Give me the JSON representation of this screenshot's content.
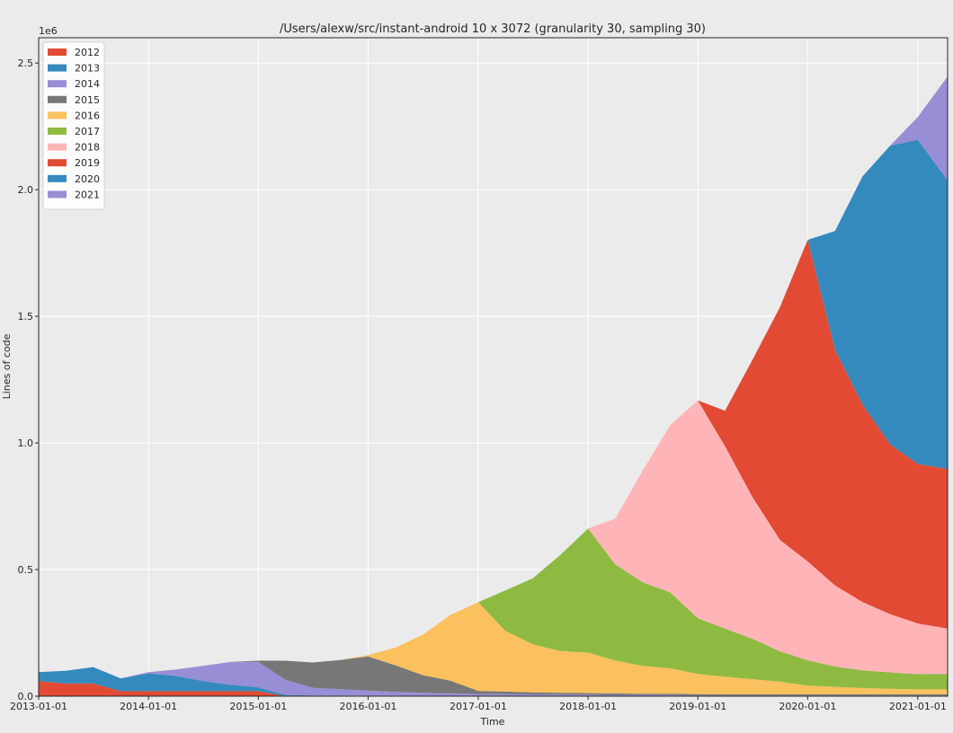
{
  "chart_data": {
    "type": "area",
    "stacked": true,
    "title": "/Users/alexw/src/instant-android 10 x 3072 (granularity 30, sampling 30)",
    "xlabel": "Time",
    "ylabel": "Lines of code",
    "y_scale_label": "1e6",
    "xlim": [
      "2013-01-01",
      "2021-04-10"
    ],
    "ylim": [
      0,
      2.6
    ],
    "grid": true,
    "legend_position": "upper-left",
    "x_ticks": [
      "2013-01-01",
      "2014-01-01",
      "2015-01-01",
      "2016-01-01",
      "2017-01-01",
      "2018-01-01",
      "2019-01-01",
      "2020-01-01",
      "2021-01-01"
    ],
    "y_ticks": [
      "0.0",
      "0.5",
      "1.0",
      "1.5",
      "2.0",
      "2.5"
    ],
    "x": [
      "2013-01-01",
      "2013-04-01",
      "2013-07-01",
      "2013-10-01",
      "2014-01-01",
      "2014-04-01",
      "2014-07-01",
      "2014-10-01",
      "2015-01-01",
      "2015-04-01",
      "2015-07-01",
      "2015-10-01",
      "2016-01-01",
      "2016-04-01",
      "2016-07-01",
      "2016-10-01",
      "2017-01-01",
      "2017-04-01",
      "2017-07-01",
      "2017-10-01",
      "2018-01-01",
      "2018-04-01",
      "2018-07-01",
      "2018-10-01",
      "2019-01-01",
      "2019-04-01",
      "2019-07-01",
      "2019-10-01",
      "2020-01-01",
      "2020-04-01",
      "2020-07-01",
      "2020-10-01",
      "2021-01-01",
      "2021-04-10"
    ],
    "series": [
      {
        "name": "2012",
        "color": "#e24a33",
        "values": [
          0.06,
          0.05,
          0.05,
          0.02,
          0.02,
          0.02,
          0.02,
          0.02,
          0.02,
          0,
          0,
          0,
          0,
          0,
          0,
          0,
          0,
          0,
          0,
          0,
          0,
          0,
          0,
          0,
          0,
          0,
          0,
          0,
          0,
          0,
          0,
          0,
          0,
          0
        ]
      },
      {
        "name": "2013",
        "color": "#348abd",
        "values": [
          0.035,
          0.05,
          0.065,
          0.05,
          0.07,
          0.06,
          0.04,
          0.025,
          0.015,
          0.005,
          0.003,
          0.003,
          0.002,
          0.002,
          0.001,
          0.001,
          0.001,
          0.001,
          0.001,
          0.001,
          0.001,
          0.001,
          0.001,
          0.001,
          0,
          0,
          0,
          0,
          0,
          0,
          0,
          0,
          0,
          0
        ]
      },
      {
        "name": "2014",
        "color": "#988ed5",
        "values": [
          0,
          0,
          0,
          0,
          0.005,
          0.025,
          0.06,
          0.09,
          0.1,
          0.06,
          0.03,
          0.025,
          0.02,
          0.015,
          0.012,
          0.01,
          0.008,
          0.007,
          0.006,
          0.005,
          0.005,
          0.004,
          0.004,
          0.004,
          0.003,
          0.003,
          0.003,
          0.003,
          0.003,
          0.003,
          0.003,
          0.003,
          0.003,
          0.003
        ]
      },
      {
        "name": "2015",
        "color": "#777777",
        "values": [
          0,
          0,
          0,
          0,
          0,
          0,
          0,
          0,
          0.005,
          0.075,
          0.1,
          0.115,
          0.135,
          0.105,
          0.07,
          0.05,
          0.012,
          0.01,
          0.008,
          0.007,
          0.006,
          0.006,
          0.005,
          0.005,
          0.005,
          0.004,
          0.004,
          0.004,
          0.004,
          0.004,
          0.004,
          0.004,
          0.004,
          0.004
        ]
      },
      {
        "name": "2016",
        "color": "#fbc15e",
        "values": [
          0,
          0,
          0,
          0,
          0,
          0,
          0,
          0,
          0,
          0,
          0,
          0,
          0.005,
          0.07,
          0.16,
          0.26,
          0.35,
          0.24,
          0.19,
          0.165,
          0.16,
          0.13,
          0.11,
          0.1,
          0.08,
          0.07,
          0.06,
          0.05,
          0.035,
          0.03,
          0.025,
          0.022,
          0.02,
          0.02
        ]
      },
      {
        "name": "2017",
        "color": "#8eba42",
        "values": [
          0,
          0,
          0,
          0,
          0,
          0,
          0,
          0,
          0,
          0,
          0,
          0,
          0,
          0,
          0,
          0,
          0,
          0.16,
          0.26,
          0.38,
          0.49,
          0.38,
          0.33,
          0.3,
          0.22,
          0.19,
          0.16,
          0.12,
          0.1,
          0.08,
          0.07,
          0.065,
          0.06,
          0.06
        ]
      },
      {
        "name": "2018",
        "color": "#ffb5b8",
        "values": [
          0,
          0,
          0,
          0,
          0,
          0,
          0,
          0,
          0,
          0,
          0,
          0,
          0,
          0,
          0,
          0,
          0,
          0,
          0,
          0,
          0,
          0.18,
          0.44,
          0.66,
          0.86,
          0.72,
          0.56,
          0.44,
          0.39,
          0.32,
          0.27,
          0.23,
          0.2,
          0.18
        ]
      },
      {
        "name": "2019",
        "color": "#e24a33",
        "values": [
          0,
          0,
          0,
          0,
          0,
          0,
          0,
          0,
          0,
          0,
          0,
          0,
          0,
          0,
          0,
          0,
          0,
          0,
          0,
          0,
          0,
          0,
          0,
          0,
          0,
          0.14,
          0.54,
          0.92,
          1.27,
          0.93,
          0.78,
          0.67,
          0.63,
          0.63
        ]
      },
      {
        "name": "2020",
        "color": "#348abd",
        "values": [
          0,
          0,
          0,
          0,
          0,
          0,
          0,
          0,
          0,
          0,
          0,
          0,
          0,
          0,
          0,
          0,
          0,
          0,
          0,
          0,
          0,
          0,
          0,
          0,
          0,
          0,
          0,
          0,
          0,
          0.47,
          0.9,
          1.18,
          1.28,
          1.14
        ]
      },
      {
        "name": "2021",
        "color": "#988ed5",
        "values": [
          0,
          0,
          0,
          0,
          0,
          0,
          0,
          0,
          0,
          0,
          0,
          0,
          0,
          0,
          0,
          0,
          0,
          0,
          0,
          0,
          0,
          0,
          0,
          0,
          0,
          0,
          0,
          0,
          0,
          0,
          0,
          0,
          0.09,
          0.41
        ]
      }
    ]
  }
}
